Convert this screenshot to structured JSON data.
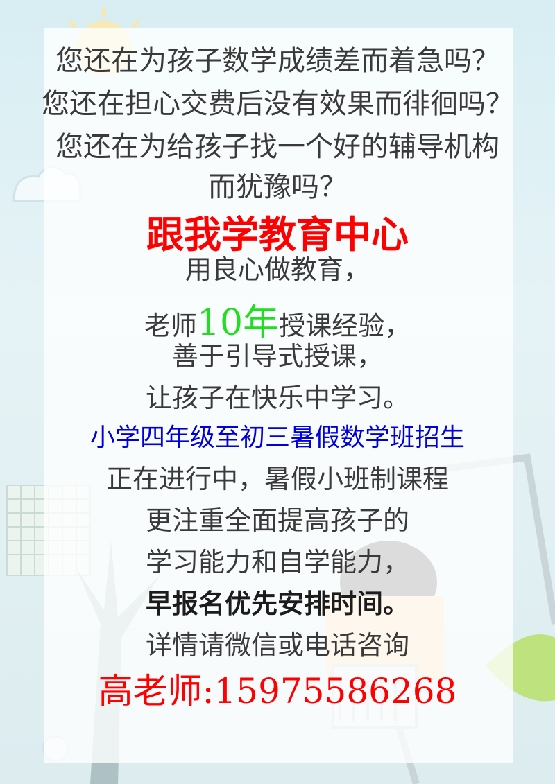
{
  "questions": [
    "您还在为孩子数学成绩差而着急吗？",
    "您还在担心交费后没有效果而徘徊吗？",
    "您还在为给孩子找一个好的辅导机构",
    "而犹豫吗？"
  ],
  "center_name": "跟我学教育中心",
  "slogan": "用良心做教育，",
  "teacher": {
    "prefix": "老师",
    "years": "10年",
    "suffix": "授课经验，"
  },
  "method": "善于引导式授课，",
  "happy": "让孩子在快乐中学习。",
  "enroll": "小学四年级至初三暑假数学班招生",
  "progress": "正在进行中，暑假小班制课程",
  "focus_1": "更注重全面提高孩子的",
  "focus_2": "学习能力和自学能力，",
  "early": "早报名优先安排时间。",
  "consult": "详情请微信或电话咨询",
  "contact": "高老师:15975586268",
  "colors": {
    "red": "#ff0000",
    "green": "#22dd22",
    "blue": "#0000dd"
  }
}
